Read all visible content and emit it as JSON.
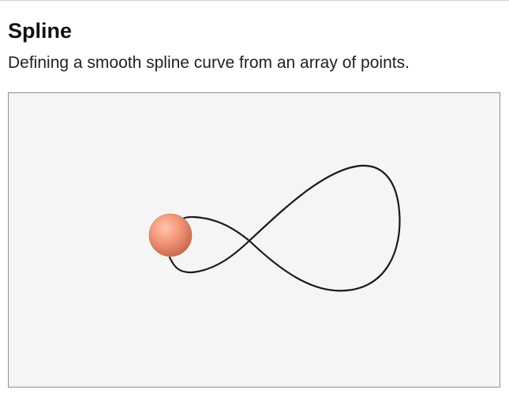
{
  "page": {
    "title": "Spline",
    "description": "Defining a smooth spline curve from an array of points."
  },
  "scene": {
    "background_color": "#f5f5f5",
    "curve_color": "#1a1a1a",
    "sphere_color": "#f4977a"
  }
}
